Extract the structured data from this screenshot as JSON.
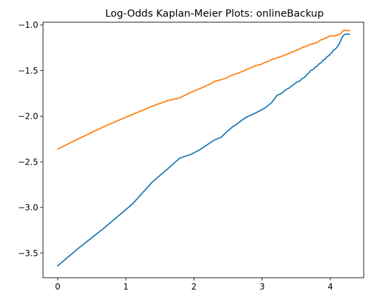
{
  "chart_data": {
    "type": "line",
    "title": "Log-Odds Kaplan-Meier Plots: onlineBackup",
    "xlabel": "",
    "ylabel": "",
    "xlim": [
      -0.215,
      4.49
    ],
    "ylim": [
      -3.77,
      -0.97
    ],
    "xticks": [
      0,
      1,
      2,
      3,
      4
    ],
    "xtick_labels": [
      "0",
      "1",
      "2",
      "3",
      "4"
    ],
    "yticks": [
      -3.5,
      -3.0,
      -2.5,
      -2.0,
      -1.5,
      -1.0
    ],
    "ytick_labels": [
      "−3.5",
      "−3.0",
      "−2.5",
      "−2.0",
      "−1.5",
      "−1.0"
    ],
    "grid": false,
    "legend": "none",
    "series": [
      {
        "color": "#1f77b4",
        "x": [
          0,
          0.3,
          0.69,
          1.1,
          1.39,
          1.61,
          1.79,
          1.95,
          2.08,
          2.2,
          2.3,
          2.4,
          2.48,
          2.56,
          2.64,
          2.71,
          2.77,
          2.83,
          2.89,
          2.94,
          2.99,
          3.04,
          3.09,
          3.14,
          3.18,
          3.22,
          3.26,
          3.3,
          3.33,
          3.37,
          3.4,
          3.43,
          3.47,
          3.5,
          3.53,
          3.56,
          3.58,
          3.61,
          3.64,
          3.66,
          3.69,
          3.71,
          3.74,
          3.76,
          3.78,
          3.81,
          3.83,
          3.85,
          3.87,
          3.89,
          3.91,
          3.93,
          3.95,
          3.97,
          3.99,
          4.01,
          4.03,
          4.04,
          4.06,
          4.08,
          4.09,
          4.11,
          4.13,
          4.14,
          4.16,
          4.17,
          4.19,
          4.2,
          4.22,
          4.23,
          4.25,
          4.26,
          4.28
        ],
        "y": [
          -3.64,
          -3.45,
          -3.22,
          -2.96,
          -2.72,
          -2.58,
          -2.46,
          -2.42,
          -2.37,
          -2.31,
          -2.26,
          -2.23,
          -2.17,
          -2.12,
          -2.08,
          -2.04,
          -2.01,
          -1.99,
          -1.97,
          -1.95,
          -1.93,
          -1.91,
          -1.88,
          -1.85,
          -1.81,
          -1.77,
          -1.76,
          -1.74,
          -1.72,
          -1.7,
          -1.69,
          -1.67,
          -1.65,
          -1.63,
          -1.62,
          -1.61,
          -1.59,
          -1.58,
          -1.56,
          -1.54,
          -1.52,
          -1.5,
          -1.49,
          -1.48,
          -1.46,
          -1.45,
          -1.43,
          -1.42,
          -1.41,
          -1.39,
          -1.38,
          -1.37,
          -1.35,
          -1.34,
          -1.33,
          -1.31,
          -1.3,
          -1.28,
          -1.27,
          -1.26,
          -1.25,
          -1.23,
          -1.21,
          -1.19,
          -1.16,
          -1.14,
          -1.12,
          -1.11,
          -1.1,
          -1.1,
          -1.1,
          -1.1,
          -1.1
        ]
      },
      {
        "color": "#ff7f0e",
        "x": [
          0,
          0.3,
          0.69,
          1.1,
          1.39,
          1.61,
          1.79,
          1.95,
          2.08,
          2.2,
          2.3,
          2.4,
          2.48,
          2.56,
          2.64,
          2.71,
          2.77,
          2.83,
          2.89,
          2.94,
          2.99,
          3.04,
          3.09,
          3.14,
          3.18,
          3.22,
          3.26,
          3.3,
          3.33,
          3.37,
          3.4,
          3.43,
          3.47,
          3.5,
          3.53,
          3.56,
          3.58,
          3.61,
          3.64,
          3.66,
          3.69,
          3.71,
          3.74,
          3.76,
          3.78,
          3.81,
          3.83,
          3.85,
          3.87,
          3.89,
          3.91,
          3.93,
          3.95,
          3.97,
          3.99,
          4.01,
          4.03,
          4.04,
          4.06,
          4.08,
          4.09,
          4.11,
          4.13,
          4.14,
          4.16,
          4.17,
          4.19,
          4.2,
          4.22,
          4.23,
          4.25,
          4.26,
          4.28
        ],
        "y": [
          -2.36,
          -2.25,
          -2.11,
          -1.98,
          -1.89,
          -1.83,
          -1.8,
          -1.74,
          -1.7,
          -1.66,
          -1.62,
          -1.6,
          -1.58,
          -1.55,
          -1.53,
          -1.51,
          -1.49,
          -1.47,
          -1.45,
          -1.44,
          -1.43,
          -1.41,
          -1.4,
          -1.38,
          -1.37,
          -1.36,
          -1.35,
          -1.34,
          -1.33,
          -1.32,
          -1.31,
          -1.3,
          -1.29,
          -1.28,
          -1.27,
          -1.26,
          -1.25,
          -1.24,
          -1.24,
          -1.23,
          -1.22,
          -1.21,
          -1.21,
          -1.2,
          -1.2,
          -1.19,
          -1.18,
          -1.17,
          -1.16,
          -1.16,
          -1.15,
          -1.14,
          -1.14,
          -1.13,
          -1.12,
          -1.12,
          -1.12,
          -1.12,
          -1.12,
          -1.12,
          -1.11,
          -1.11,
          -1.1,
          -1.1,
          -1.09,
          -1.08,
          -1.06,
          -1.06,
          -1.06,
          -1.06,
          -1.06,
          -1.06,
          -1.06
        ]
      }
    ]
  }
}
